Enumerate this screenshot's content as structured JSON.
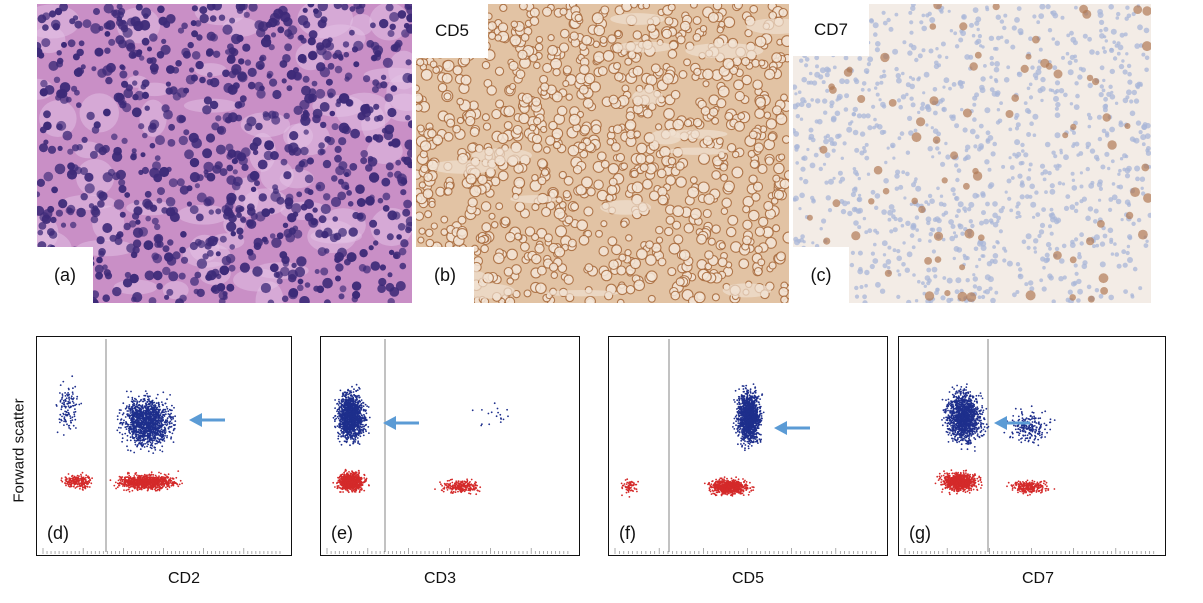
{
  "micrographs": [
    {
      "id": "a",
      "label": "(a)",
      "stain": "",
      "kind": "he"
    },
    {
      "id": "b",
      "label": "(b)",
      "stain": "CD5",
      "kind": "cd5"
    },
    {
      "id": "c",
      "label": "(c)",
      "stain": "CD7",
      "kind": "cd7"
    }
  ],
  "flow_plots": [
    {
      "id": "d",
      "label": "(d)",
      "marker": "CD2"
    },
    {
      "id": "e",
      "label": "(e)",
      "marker": "CD3"
    },
    {
      "id": "f",
      "label": "(f)",
      "marker": "CD5"
    },
    {
      "id": "g",
      "label": "(g)",
      "marker": "CD7"
    }
  ],
  "y_axis_label": "Forward scatter",
  "colors": {
    "he_background": "#c98fc6",
    "he_nucleus": "#3d2a78",
    "cd5_background": "#e2c3a4",
    "cd5_membrane": "#a86a3c",
    "cd7_background": "#f3ece6",
    "cd7_nucleus": "#a9b7d8",
    "cd7_positive": "#b07a55",
    "dot_blue": "#1e2f8c",
    "dot_red": "#d42a2a",
    "arrow": "#5b9bd5",
    "gate_line": "#999999"
  }
}
